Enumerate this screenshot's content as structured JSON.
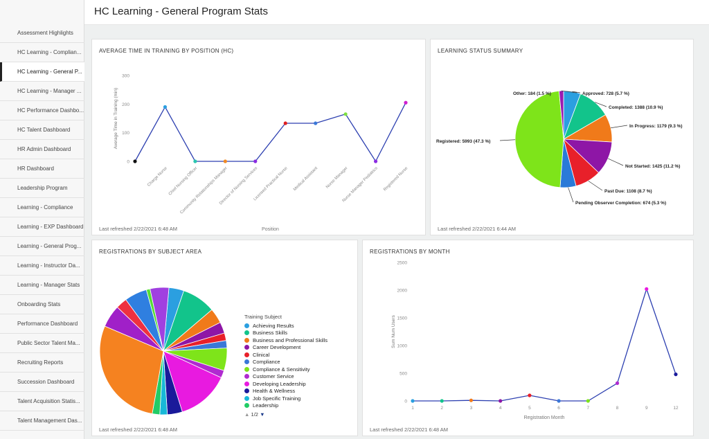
{
  "header": {
    "title": "HC Learning - General Program Stats"
  },
  "sidebar": {
    "items": [
      {
        "label": "Assessment Highlights",
        "active": false
      },
      {
        "label": "HC Learning - Complian...",
        "active": false
      },
      {
        "label": "HC Learning - General P...",
        "active": true
      },
      {
        "label": "HC Learning - Manager ...",
        "active": false
      },
      {
        "label": "HC Performance Dashbo...",
        "active": false
      },
      {
        "label": "HC Talent Dashboard",
        "active": false
      },
      {
        "label": "HR Admin Dashboard",
        "active": false
      },
      {
        "label": "HR Dashboard",
        "active": false
      },
      {
        "label": "Leadership Program",
        "active": false
      },
      {
        "label": "Learning - Compliance",
        "active": false
      },
      {
        "label": "Learning - EXP Dashboard",
        "active": false
      },
      {
        "label": "Learning - General Prog...",
        "active": false
      },
      {
        "label": "Learning - Instructor Da...",
        "active": false
      },
      {
        "label": "Learning - Manager Stats",
        "active": false
      },
      {
        "label": "Onboarding Stats",
        "active": false
      },
      {
        "label": "Performance Dashboard",
        "active": false
      },
      {
        "label": "Public Sector Talent Ma...",
        "active": false
      },
      {
        "label": "Recruiting Reports",
        "active": false
      },
      {
        "label": "Succession Dashboard",
        "active": false
      },
      {
        "label": "Talent Acquisition Statis...",
        "active": false
      },
      {
        "label": "Talent Management Das...",
        "active": false
      }
    ]
  },
  "panels": {
    "avg_time": {
      "title": "AVERAGE TIME IN TRAINING BY POSITION (HC)",
      "footer": "Last refreshed 2/22/2021 6:48 AM"
    },
    "status": {
      "title": "LEARNING STATUS SUMMARY",
      "footer": "Last refreshed 2/22/2021 6:44 AM"
    },
    "subject": {
      "title": "REGISTRATIONS BY SUBJECT AREA",
      "footer": "Last refreshed 2/22/2021 6:48 AM",
      "legend_title": "Training Subject",
      "pager": "1/2"
    },
    "month": {
      "title": "REGISTRATIONS BY MONTH",
      "footer": "Last refreshed 2/22/2021 6:48 AM"
    }
  },
  "chart_data": [
    {
      "id": "avg_time",
      "type": "line",
      "title": "AVERAGE TIME IN TRAINING BY POSITION (HC)",
      "xlabel": "Position",
      "ylabel": "Average Time in Training (min)",
      "ylim": [
        0,
        300
      ],
      "yticks": [
        0,
        100,
        200,
        300
      ],
      "categories": [
        "",
        "Charge Nurse",
        "Chief Nursing Officer",
        "Community Relationships Manager",
        "Director of Nursing Services",
        "Licensed Practical Nurse",
        "Medical Assistant",
        "Nurse Manager",
        "Nurse Manager Pediatrics",
        "Registered Nurse"
      ],
      "values": [
        0,
        190,
        0,
        0,
        0,
        133,
        133,
        165,
        0,
        205
      ],
      "point_colors": [
        "#111111",
        "#2b9fe0",
        "#2cc6b0",
        "#f08a24",
        "#8a2be2",
        "#e02020",
        "#3a78d8",
        "#7ee040",
        "#8a2be2",
        "#d020d0"
      ],
      "line_color": "#2c3fb0",
      "grid": false
    },
    {
      "id": "status",
      "type": "pie",
      "title": "LEARNING STATUS SUMMARY",
      "slices": [
        {
          "label": "Approved: 728 (5.7 %)",
          "value": 5.7,
          "color": "#2b9fe0"
        },
        {
          "label": "Completed: 1388 (10.9 %)",
          "value": 10.9,
          "color": "#12c48b"
        },
        {
          "label": "In Progress: 1179 (9.3 %)",
          "value": 9.3,
          "color": "#f07a1a"
        },
        {
          "label": "Not Started: 1425 (11.2 %)",
          "value": 11.2,
          "color": "#8e16a6"
        },
        {
          "label": "Past Due: 1108 (8.7 %)",
          "value": 8.7,
          "color": "#e8202a"
        },
        {
          "label": "Pending Observer Completion: 674 (5.3 %)",
          "value": 5.3,
          "color": "#2a7ad8"
        },
        {
          "label": "Registered: 5993 (47.3 %)",
          "value": 47.3,
          "color": "#7ee41a"
        },
        {
          "label": "Other: 184 (1.5 %)",
          "value": 1.5,
          "color": "#9a1ab0"
        }
      ]
    },
    {
      "id": "subject",
      "type": "pie",
      "title": "REGISTRATIONS BY SUBJECT AREA",
      "legend": [
        {
          "label": "Achieving Results",
          "color": "#2b9fe0"
        },
        {
          "label": "Business Skills",
          "color": "#12c48b"
        },
        {
          "label": "Business and Professional Skills",
          "color": "#f07a1a"
        },
        {
          "label": "Career Development",
          "color": "#8e16a6"
        },
        {
          "label": "Clinical",
          "color": "#e8202a"
        },
        {
          "label": "Compliance",
          "color": "#3a78d8"
        },
        {
          "label": "Compliance & Sensitivity",
          "color": "#7ee41a"
        },
        {
          "label": "Customer Service",
          "color": "#b02ad0"
        },
        {
          "label": "Developing Leadership",
          "color": "#e81ae0"
        },
        {
          "label": "Health & Wellness",
          "color": "#1a1a9a"
        },
        {
          "label": "Job Specific Training",
          "color": "#18b8d8"
        },
        {
          "label": "Leadership",
          "color": "#22cc66"
        }
      ],
      "slices": [
        {
          "value": 4,
          "color": "#2b9fe0"
        },
        {
          "value": 9,
          "color": "#12c48b"
        },
        {
          "value": 4,
          "color": "#f07a1a"
        },
        {
          "value": 3,
          "color": "#8e16a6"
        },
        {
          "value": 2,
          "color": "#e8202a"
        },
        {
          "value": 2,
          "color": "#3a78d8"
        },
        {
          "value": 6,
          "color": "#7ee41a"
        },
        {
          "value": 2,
          "color": "#b02ad0"
        },
        {
          "value": 14,
          "color": "#e81ae0"
        },
        {
          "value": 4,
          "color": "#1a1a9a"
        },
        {
          "value": 2,
          "color": "#18b8d8"
        },
        {
          "value": 2,
          "color": "#22cc66"
        },
        {
          "value": 30,
          "color": "#f58220"
        },
        {
          "value": 6,
          "color": "#a020c8"
        },
        {
          "value": 3,
          "color": "#ee3040"
        },
        {
          "value": 6,
          "color": "#2f7fe0"
        },
        {
          "value": 1,
          "color": "#55dd33"
        },
        {
          "value": 5,
          "color": "#a040e0"
        }
      ]
    },
    {
      "id": "month",
      "type": "line",
      "title": "REGISTRATIONS BY MONTH",
      "xlabel": "Registration Month",
      "ylabel": "Sum Num Users",
      "ylim": [
        0,
        2500
      ],
      "yticks": [
        0,
        500,
        1000,
        1500,
        2000,
        2500
      ],
      "categories": [
        "1",
        "2",
        "3",
        "4",
        "5",
        "6",
        "7",
        "8",
        "9",
        "12"
      ],
      "values": [
        0,
        0,
        10,
        0,
        100,
        0,
        0,
        320,
        2020,
        480
      ],
      "point_colors": [
        "#2b9fe0",
        "#12c48b",
        "#f07a1a",
        "#8e16a6",
        "#e8202a",
        "#3a78d8",
        "#7ee41a",
        "#b02ad0",
        "#e81ae0",
        "#1a1a9a"
      ],
      "line_color": "#2c3fb0",
      "grid": false
    }
  ]
}
